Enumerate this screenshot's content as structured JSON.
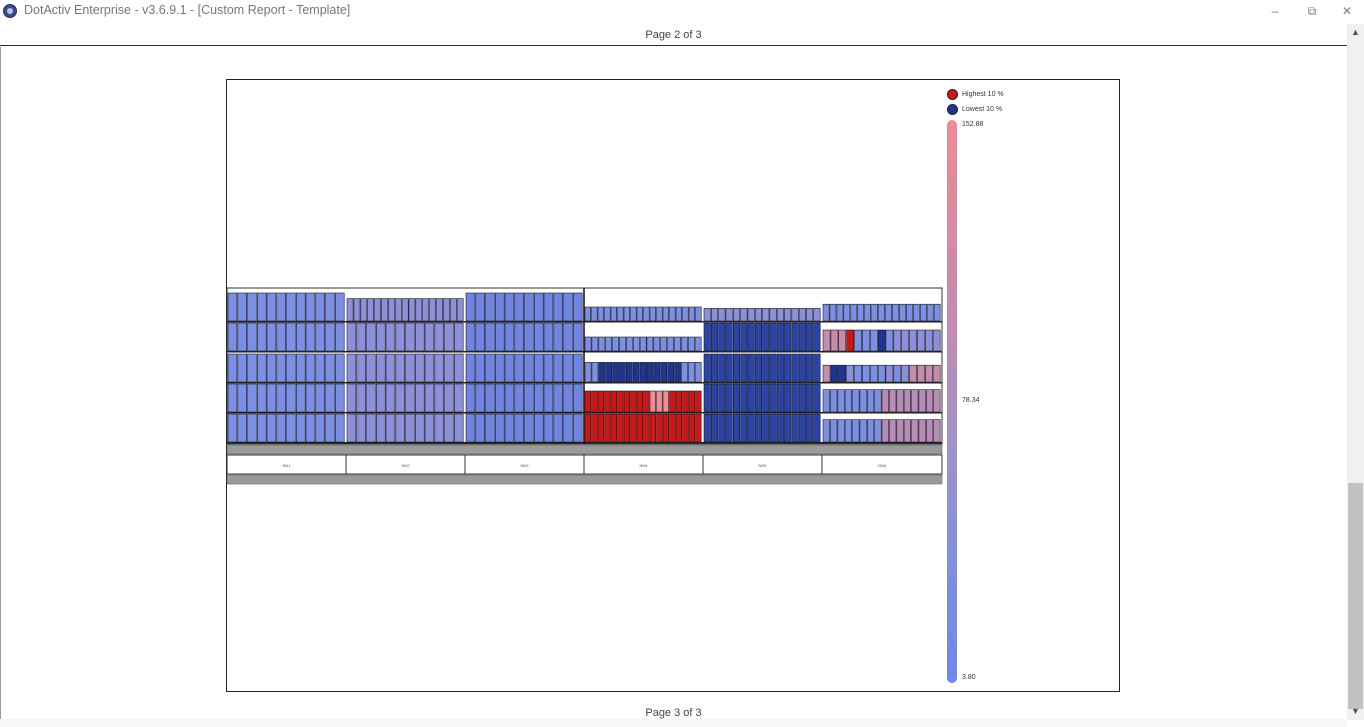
{
  "window": {
    "title": "DotActiv Enterprise - v3.6.9.1 - [Custom Report - Template]",
    "minimize_label": "–",
    "restore_label": "⧉",
    "close_label": "✕"
  },
  "report": {
    "page_top_label": "Page 2 of 3",
    "page_bottom_label": "Page 3 of 3"
  },
  "legend": {
    "highest_label": "Highest 10 %",
    "lowest_label": "Lowest 10 %",
    "highest_color": "#d41414",
    "lowest_color": "#1f3596"
  },
  "scale": {
    "max": "152.88",
    "mid": "78.34",
    "min": "3.80",
    "max_color": "#f08a94",
    "min_color": "#6f86ea"
  },
  "planogram": {
    "modules": [
      {
        "label": "NN1"
      },
      {
        "label": "NN2"
      },
      {
        "label": "NN3"
      },
      {
        "label": "NN4"
      },
      {
        "label": "NN5"
      },
      {
        "label": "NN6"
      }
    ]
  },
  "icons": {
    "app": "dotactiv-logo-icon",
    "scroll_up": "chevron-up-icon",
    "scroll_down": "chevron-down-icon"
  }
}
